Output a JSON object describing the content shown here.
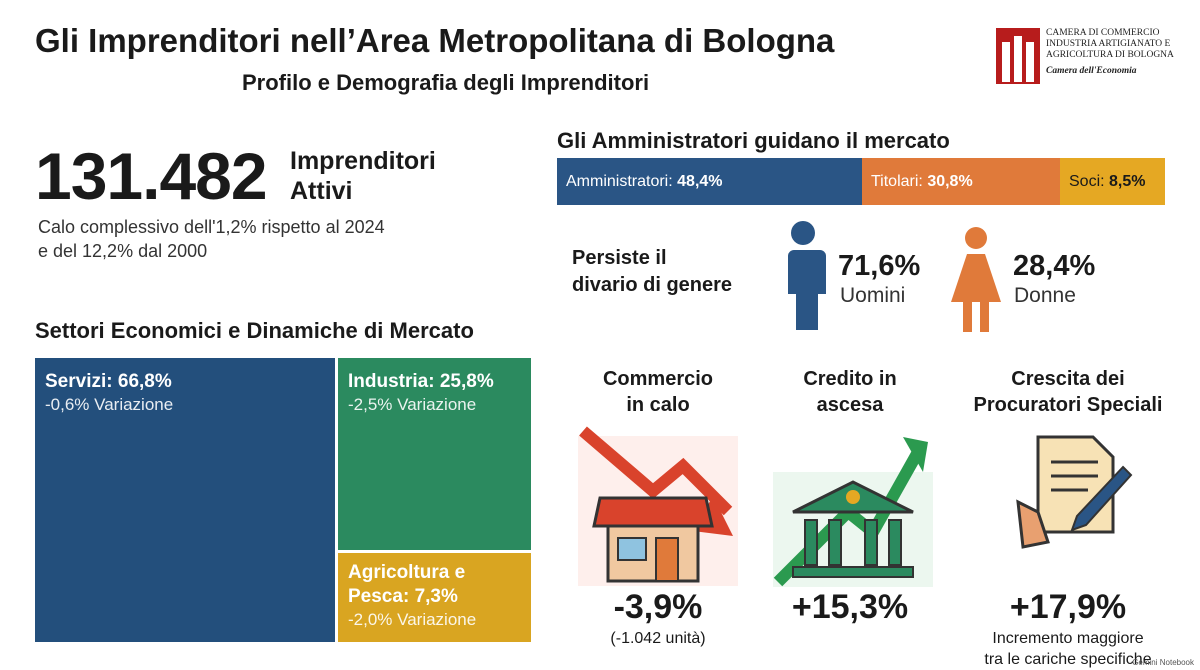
{
  "header": {
    "title": "Gli Imprenditori nell’Area Metropolitana di Bologna",
    "subtitle": "Profilo e Demografia degli Imprenditori",
    "logo_lines": [
      "CAMERA DI COMMERCIO",
      "INDUSTRIA ARTIGIANATO E",
      "AGRICOLTURA DI BOLOGNA",
      "Camera dell'Economia"
    ]
  },
  "headline": {
    "number": "131.482",
    "label_lines": [
      "Imprenditori",
      "Attivi"
    ],
    "note_lines": [
      "Calo complessivo dell'1,2% rispetto al 2024",
      "e del 12,2% dal 2000"
    ]
  },
  "market": {
    "title": "Gli Amministratori guidano il mercato",
    "segments": [
      {
        "name": "Amministratori:",
        "value": "48,4%"
      },
      {
        "name": "Titolari:",
        "value": "30,8%"
      },
      {
        "name": "Soci:",
        "value": "8,5%"
      }
    ]
  },
  "gender": {
    "title_lines": [
      "Persiste il",
      "divario di genere"
    ],
    "men": {
      "value": "71,6%",
      "label": "Uomini"
    },
    "women": {
      "value": "28,4%",
      "label": "Donne"
    }
  },
  "sectors": {
    "title": "Settori Economici e Dinamiche di Mercato",
    "tiles": [
      {
        "name": "Servizi:",
        "value": "66,8%",
        "change": "-0,6% Variazione"
      },
      {
        "name": "Industria:",
        "value": "25,8%",
        "change": "-2,5% Variazione"
      },
      {
        "name": "Agricoltura e Pesca:",
        "value": "7,3%",
        "change": "-2,0% Variazione"
      }
    ]
  },
  "trends": [
    {
      "title_lines": [
        "Commercio",
        "in calo"
      ],
      "value": "-3,9%",
      "note_lines": [
        "(-1.042 unità)"
      ]
    },
    {
      "title_lines": [
        "Credito in",
        "ascesa"
      ],
      "value": "+15,3%",
      "note_lines": []
    },
    {
      "title_lines": [
        "Crescita dei",
        "Procuratori Speciali"
      ],
      "value": "+17,9%",
      "note_lines": [
        "Incremento maggiore",
        "tra le cariche specifiche"
      ]
    }
  ],
  "footer": {
    "brand": "Gemini Notebook"
  }
}
